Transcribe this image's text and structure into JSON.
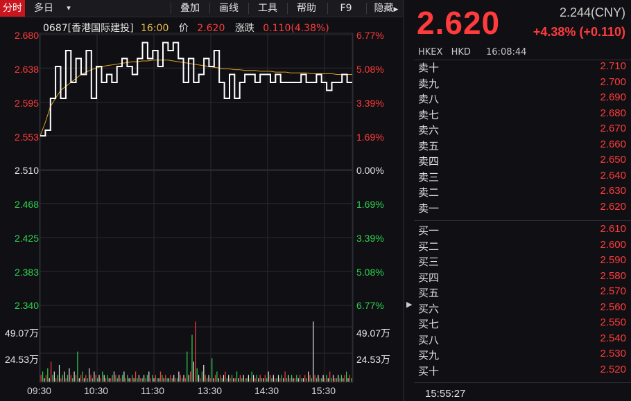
{
  "toolbar": {
    "tabs": [
      {
        "label": "分时"
      },
      {
        "label": "多日"
      },
      {
        "label": "▾"
      },
      {
        "label": "叠加"
      },
      {
        "label": "画线"
      },
      {
        "label": "工具"
      },
      {
        "label": "帮助"
      },
      {
        "label": "F9"
      },
      {
        "label": "隐藏"
      }
    ]
  },
  "info": {
    "code_name": "0687[香港国际建投]",
    "time": "16:00",
    "price_label": "价",
    "price": "2.620",
    "change_label": "涨跌",
    "change": "0.110(4.38%)"
  },
  "axes": {
    "left": [
      "2.680",
      "2.638",
      "2.595",
      "2.553",
      "2.510",
      "2.468",
      "2.425",
      "2.383",
      "2.340"
    ],
    "right": [
      "6.77%",
      "5.08%",
      "3.39%",
      "1.69%",
      "0.00%",
      "1.69%",
      "3.39%",
      "5.08%",
      "6.77%"
    ],
    "vol_left": [
      "49.07万",
      "24.53万"
    ],
    "vol_right": [
      "49.07万",
      "24.53万"
    ],
    "times": [
      "09:30",
      "10:30",
      "11:30",
      "13:30",
      "14:30",
      "15:30"
    ]
  },
  "chart_data": {
    "type": "line",
    "title": "",
    "ylim": [
      2.34,
      2.68
    ],
    "baseline": 2.51,
    "price": [
      2.553,
      2.56,
      2.6,
      2.64,
      2.6,
      2.66,
      2.62,
      2.65,
      2.63,
      2.66,
      2.6,
      2.64,
      2.62,
      2.63,
      2.62,
      2.64,
      2.65,
      2.64,
      2.63,
      2.65,
      2.67,
      2.65,
      2.66,
      2.64,
      2.67,
      2.66,
      2.67,
      2.65,
      2.62,
      2.65,
      2.62,
      2.63,
      2.65,
      2.64,
      2.66,
      2.62,
      2.6,
      2.63,
      2.6,
      2.62,
      2.63,
      2.63,
      2.62,
      2.63,
      2.63,
      2.62,
      2.63,
      2.62,
      2.62,
      2.62,
      2.62,
      2.63,
      2.62,
      2.62,
      2.63,
      2.62,
      2.61,
      2.62,
      2.62,
      2.63,
      2.62,
      2.62
    ],
    "avg": [
      2.553,
      2.57,
      2.59,
      2.6,
      2.61,
      2.615,
      2.62,
      2.625,
      2.63,
      2.633,
      2.636,
      2.638,
      2.64,
      2.641,
      2.642,
      2.643,
      2.644,
      2.645,
      2.646,
      2.646,
      2.647,
      2.647,
      2.648,
      2.648,
      2.648,
      2.648,
      2.647,
      2.646,
      2.645,
      2.644,
      2.643,
      2.642,
      2.641,
      2.64,
      2.639,
      2.638,
      2.637,
      2.637,
      2.636,
      2.636,
      2.635,
      2.635,
      2.635,
      2.634,
      2.634,
      2.634,
      2.633,
      2.633,
      2.633,
      2.632,
      2.632,
      2.632,
      2.632,
      2.631,
      2.631,
      2.631,
      2.631,
      2.631,
      2.63,
      2.63,
      2.63,
      2.63
    ],
    "volumes": [
      2,
      3,
      1,
      2,
      4,
      1,
      6,
      2,
      3,
      1,
      2,
      5,
      1,
      2,
      3,
      1,
      2,
      4,
      2,
      1,
      3,
      2,
      9,
      1,
      2,
      3,
      1,
      2,
      1,
      4,
      2,
      1,
      3,
      2,
      1,
      2,
      1,
      3,
      2,
      1,
      2,
      1,
      1,
      2,
      3,
      2,
      1,
      2,
      1,
      2,
      3,
      1,
      2,
      1,
      1,
      2,
      1,
      3,
      1,
      2,
      1,
      1,
      2,
      1,
      2,
      3,
      1,
      2,
      1,
      2,
      1,
      1,
      3,
      2,
      1,
      2,
      1,
      1,
      2,
      1,
      2,
      1,
      1,
      3,
      2,
      1,
      2,
      1,
      9,
      2,
      3,
      14,
      6,
      18,
      4,
      2,
      1,
      3,
      5,
      2,
      1,
      2,
      1,
      7,
      1,
      2,
      3,
      1,
      2,
      1,
      2,
      3,
      1,
      2,
      1,
      2,
      1,
      1,
      3,
      1,
      2,
      1,
      2,
      1,
      1,
      2,
      1,
      3,
      2,
      1,
      2,
      1,
      2,
      1,
      1,
      2,
      1,
      3,
      2,
      1,
      2,
      1,
      1,
      2,
      1,
      2,
      1,
      3,
      1,
      2,
      1,
      2,
      1,
      1,
      2,
      1,
      2,
      1,
      1,
      2,
      1,
      3,
      2,
      1,
      18,
      2,
      1,
      2,
      1,
      1,
      2,
      1,
      2,
      1,
      3,
      1,
      2,
      1,
      1,
      2,
      1,
      2,
      1,
      2,
      3,
      1,
      2,
      1
    ],
    "vol_max": 22
  },
  "quote": {
    "price": "2.620",
    "ref": "2.244(CNY)",
    "change": "+4.38% (+0.110)",
    "exchange": "HKEX",
    "currency": "HKD",
    "time": "16:08:44"
  },
  "asks": [
    {
      "label": "卖十",
      "price": "2.710"
    },
    {
      "label": "卖九",
      "price": "2.700"
    },
    {
      "label": "卖八",
      "price": "2.690"
    },
    {
      "label": "卖七",
      "price": "2.680"
    },
    {
      "label": "卖六",
      "price": "2.670"
    },
    {
      "label": "卖五",
      "price": "2.660"
    },
    {
      "label": "卖四",
      "price": "2.650"
    },
    {
      "label": "卖三",
      "price": "2.640"
    },
    {
      "label": "卖二",
      "price": "2.630"
    },
    {
      "label": "卖一",
      "price": "2.620"
    }
  ],
  "bids": [
    {
      "label": "买一",
      "price": "2.610"
    },
    {
      "label": "买二",
      "price": "2.600"
    },
    {
      "label": "买三",
      "price": "2.590"
    },
    {
      "label": "买四",
      "price": "2.580"
    },
    {
      "label": "买五",
      "price": "2.570"
    },
    {
      "label": "买六",
      "price": "2.560"
    },
    {
      "label": "买七",
      "price": "2.550"
    },
    {
      "label": "买八",
      "price": "2.540"
    },
    {
      "label": "买九",
      "price": "2.530"
    },
    {
      "label": "买十",
      "price": "2.520"
    }
  ],
  "footer": {
    "time": "15:55:27"
  },
  "colors": {
    "up": "#ff3b3b",
    "down": "#2fd14f",
    "price_line": "#ffffff",
    "avg_line": "#e0a020"
  }
}
